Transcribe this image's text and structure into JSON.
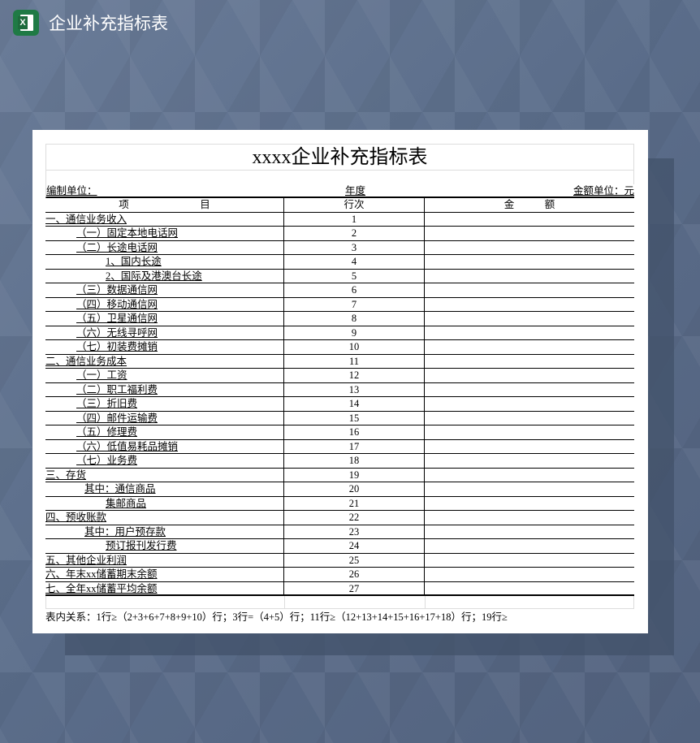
{
  "app": {
    "title": "企业补充指标表",
    "icon": "excel-icon",
    "icon_letter": "X"
  },
  "sheet": {
    "title": "xxxx企业补充指标表",
    "info": {
      "unit_label": "编制单位：",
      "year_label": "年度",
      "amount_unit": "金额单位：元"
    },
    "headers": {
      "item": "项　　　　　　　目",
      "line": "行次",
      "amount": "金　　　额"
    },
    "rows": [
      {
        "item": "一、通信业务收入",
        "indent": 0,
        "line": "1"
      },
      {
        "item": "（一）固定本地电话网",
        "indent": 1,
        "line": "2"
      },
      {
        "item": "（二）长途电话网",
        "indent": 1,
        "line": "3"
      },
      {
        "item": "1、国内长途",
        "indent": 2,
        "line": "4"
      },
      {
        "item": "2、国际及港澳台长途",
        "indent": 2,
        "line": "5"
      },
      {
        "item": "（三）数据通信网",
        "indent": 1,
        "line": "6"
      },
      {
        "item": "（四）移动通信网",
        "indent": 1,
        "line": "7"
      },
      {
        "item": "（五）卫星通信网",
        "indent": 1,
        "line": "8"
      },
      {
        "item": "（六）无线寻呼网",
        "indent": 1,
        "line": "9"
      },
      {
        "item": "（七）初装费摊销",
        "indent": 1,
        "line": "10"
      },
      {
        "item": "二、通信业务成本",
        "indent": 0,
        "line": "11"
      },
      {
        "item": "（一）工资",
        "indent": 1,
        "line": "12"
      },
      {
        "item": "（二）职工福利费",
        "indent": 1,
        "line": "13"
      },
      {
        "item": "（三）折旧费",
        "indent": 1,
        "line": "14"
      },
      {
        "item": "（四）邮件运输费",
        "indent": 1,
        "line": "15"
      },
      {
        "item": "（五）修理费",
        "indent": 1,
        "line": "16"
      },
      {
        "item": "（六）低值易耗品摊销",
        "indent": 1,
        "line": "17"
      },
      {
        "item": "（七）业务费",
        "indent": 1,
        "line": "18"
      },
      {
        "item": "三、存货",
        "indent": 0,
        "line": "19"
      },
      {
        "item": "其中：通信商品",
        "indent": 3,
        "line": "20"
      },
      {
        "item": "集邮商品",
        "indent": 2,
        "line": "21"
      },
      {
        "item": "四、预收账款",
        "indent": 0,
        "line": "22"
      },
      {
        "item": "其中：用户预存款",
        "indent": 3,
        "line": "23"
      },
      {
        "item": "预订报刊发行费",
        "indent": 2,
        "line": "24"
      },
      {
        "item": "五、其他企业利润",
        "indent": 0,
        "line": "25"
      },
      {
        "item": "六、年末xx储蓄期末余额",
        "indent": 0,
        "line": "26"
      },
      {
        "item": "七、全年xx储蓄平均余额",
        "indent": 0,
        "line": "27"
      }
    ],
    "note": "表内关系：1行≥（2+3+6+7+8+9+10）行；3行=（4+5）行；11行≥（12+13+14+15+16+17+18）行；19行≥"
  }
}
